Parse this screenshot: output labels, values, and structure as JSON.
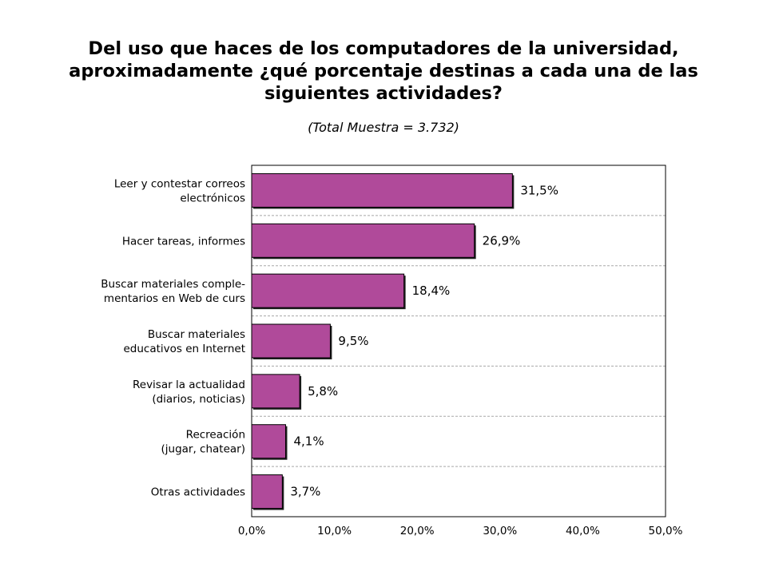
{
  "title": {
    "line1": "Del uso que haces de los computadores de la universidad,",
    "line2": "aproximadamente ¿qué porcentaje destinas a cada una de las",
    "line3": "siguientes actividades?"
  },
  "subtitle": "(Total Muestra = 3.732)",
  "colors": {
    "bar": "#b04a9a",
    "grid": "#a8a8a8",
    "frame": "#000000"
  },
  "chart_data": {
    "type": "bar",
    "orientation": "horizontal",
    "categories": [
      [
        "Leer y contestar correos",
        "electrónicos"
      ],
      [
        "Hacer tareas, informes"
      ],
      [
        "Buscar materiales comple-",
        "mentarios en Web de curs"
      ],
      [
        "Buscar materiales",
        "educativos en Internet"
      ],
      [
        "Revisar la actualidad",
        "(diarios, noticias)"
      ],
      [
        "Recreación",
        "(jugar, chatear)"
      ],
      [
        "Otras actividades"
      ]
    ],
    "values": [
      31.5,
      26.9,
      18.4,
      9.5,
      5.8,
      4.1,
      3.7
    ],
    "value_labels": [
      "31,5%",
      "26,9%",
      "18,4%",
      "9,5%",
      "5,8%",
      "4,1%",
      "3,7%"
    ],
    "xlim": [
      0,
      50
    ],
    "xticks": [
      0,
      10,
      20,
      30,
      40,
      50
    ],
    "xtick_labels": [
      "0,0%",
      "10,0%",
      "20,0%",
      "30,0%",
      "40,0%",
      "50,0%"
    ],
    "grid": "horizontal dashed between categories"
  }
}
